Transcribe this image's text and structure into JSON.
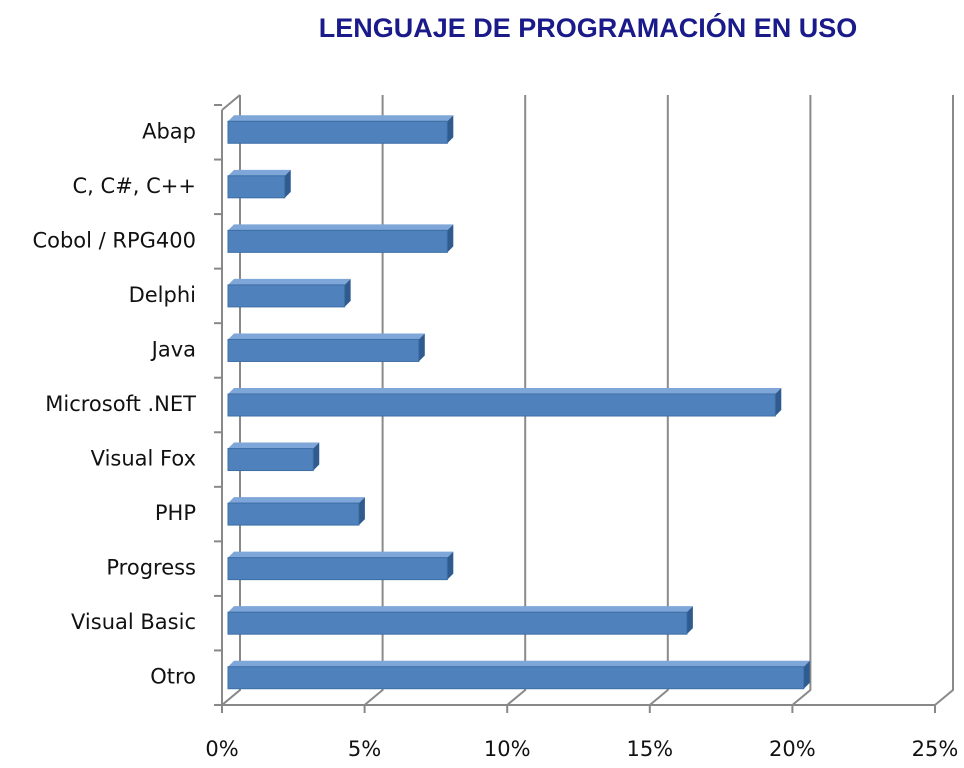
{
  "chart_data": {
    "type": "bar",
    "orientation": "horizontal",
    "title": "LENGUAJE DE PROGRAMACIÓN EN USO",
    "categories": [
      "Abap",
      "C, C#, C++",
      "Cobol / RPG400",
      "Delphi",
      "Java",
      "Microsoft .NET",
      "Visual Fox",
      "PHP",
      "Progress",
      "Visual Basic",
      "Otro"
    ],
    "values": [
      7.9,
      2.2,
      7.9,
      4.3,
      6.9,
      19.4,
      3.2,
      4.8,
      7.9,
      16.3,
      20.4
    ],
    "color": "#4f81bd",
    "xlim": [
      0,
      25
    ],
    "xticks": [
      {
        "value": 0,
        "label": "0%"
      },
      {
        "value": 5,
        "label": "5%"
      },
      {
        "value": 10,
        "label": "10%"
      },
      {
        "value": 15,
        "label": "15%"
      },
      {
        "value": 20,
        "label": "20%"
      },
      {
        "value": 25,
        "label": "25%"
      }
    ],
    "grid": true
  }
}
